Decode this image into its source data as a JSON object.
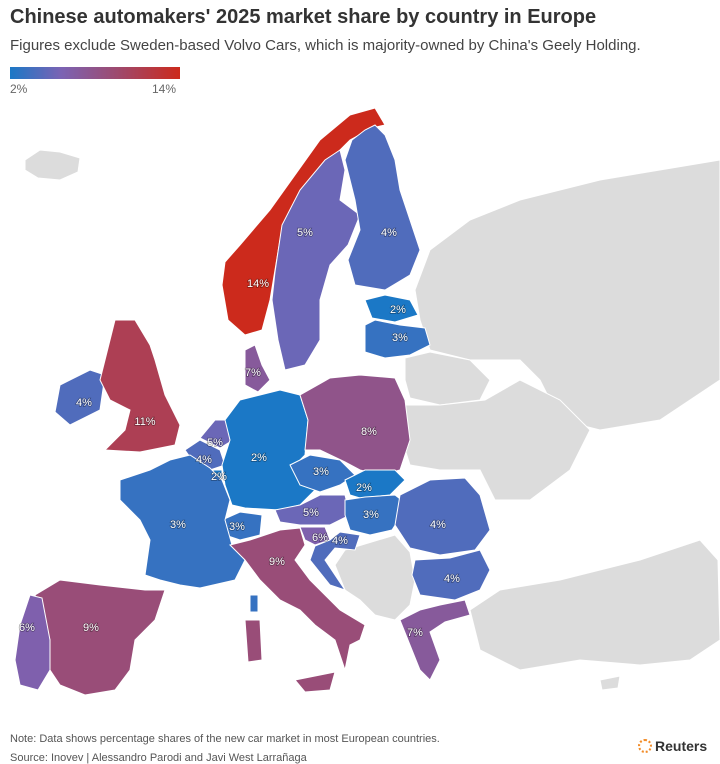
{
  "header": {
    "title": "Chinese automakers' 2025 market share by country in Europe",
    "subtitle": "Figures exclude Sweden-based Volvo Cars, which is majority-owned by China's Geely Holding."
  },
  "legend": {
    "min_label": "2%",
    "max_label": "14%",
    "min": 2,
    "max": 14,
    "colors": [
      "#1b78c6",
      "#7b63b4",
      "#a0486a",
      "#cc2a1c"
    ]
  },
  "map": {
    "no_data_color": "#dcdcdc",
    "countries": [
      {
        "name": "Norway",
        "value": 14,
        "label": "14%"
      },
      {
        "name": "Sweden",
        "value": 5,
        "label": "5%"
      },
      {
        "name": "Finland",
        "value": 4,
        "label": "4%"
      },
      {
        "name": "Estonia",
        "value": 2,
        "label": "2%"
      },
      {
        "name": "Latvia",
        "value": 3,
        "label": "3%"
      },
      {
        "name": "Denmark",
        "value": 7,
        "label": "7%"
      },
      {
        "name": "Ireland",
        "value": 4,
        "label": "4%"
      },
      {
        "name": "United Kingdom",
        "value": 11,
        "label": "11%"
      },
      {
        "name": "Netherlands",
        "value": 5,
        "label": "5%"
      },
      {
        "name": "Belgium",
        "value": 4,
        "label": "4%"
      },
      {
        "name": "Luxembourg",
        "value": 2,
        "label": "2%"
      },
      {
        "name": "Germany",
        "value": 2,
        "label": "2%"
      },
      {
        "name": "Poland",
        "value": 8,
        "label": "8%"
      },
      {
        "name": "Czechia",
        "value": 3,
        "label": "3%"
      },
      {
        "name": "Slovakia",
        "value": 2,
        "label": "2%"
      },
      {
        "name": "Austria",
        "value": 5,
        "label": "5%"
      },
      {
        "name": "Hungary",
        "value": 3,
        "label": "3%"
      },
      {
        "name": "Switzerland",
        "value": 3,
        "label": "3%"
      },
      {
        "name": "France",
        "value": 3,
        "label": "3%"
      },
      {
        "name": "Slovenia",
        "value": 6,
        "label": "6%"
      },
      {
        "name": "Croatia",
        "value": 4,
        "label": "4%"
      },
      {
        "name": "Romania",
        "value": 4,
        "label": "4%"
      },
      {
        "name": "Bulgaria",
        "value": 4,
        "label": "4%"
      },
      {
        "name": "Italy",
        "value": 9,
        "label": "9%"
      },
      {
        "name": "Spain",
        "value": 9,
        "label": "9%"
      },
      {
        "name": "Portugal",
        "value": 6,
        "label": "6%"
      },
      {
        "name": "Greece",
        "value": 7,
        "label": "7%"
      }
    ]
  },
  "footer": {
    "note": "Note: Data shows percentage shares of the new car market in most European countries.",
    "source": "Source: Inovev | Alessandro Parodi and Javi West Larrañaga",
    "brand": "Reuters"
  }
}
